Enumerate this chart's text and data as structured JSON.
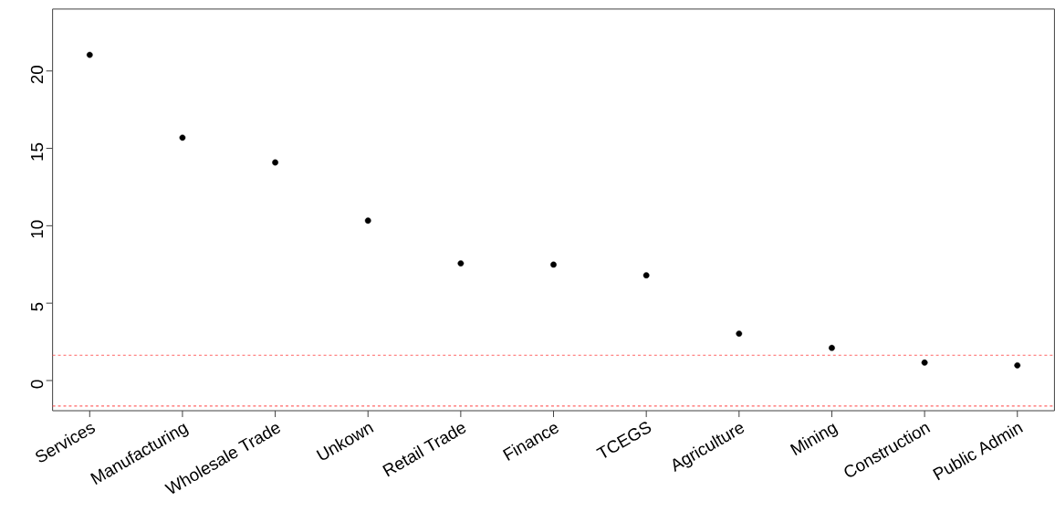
{
  "chart_data": {
    "type": "scatter",
    "categories": [
      "Services",
      "Manufacturing",
      "Wholesale Trade",
      "Unkown",
      "Retail Trade",
      "Finance",
      "TCEGS",
      "Agriculture",
      "Mining",
      "Construction",
      "Public Admin"
    ],
    "values": [
      21.04,
      15.69,
      14.09,
      10.33,
      7.57,
      7.49,
      6.8,
      3.03,
      2.11,
      1.16,
      0.98
    ],
    "color": "#000000",
    "ylim": [
      -1.95,
      24
    ],
    "yticks": [
      0,
      5,
      10,
      15,
      20
    ],
    "ref_lines": [
      {
        "axis": "y",
        "value": 1.645,
        "color": "#ff6666",
        "line_style": "dashed"
      },
      {
        "axis": "y",
        "value": -1.645,
        "color": "#ff6666",
        "line_style": "dashed"
      }
    ]
  }
}
